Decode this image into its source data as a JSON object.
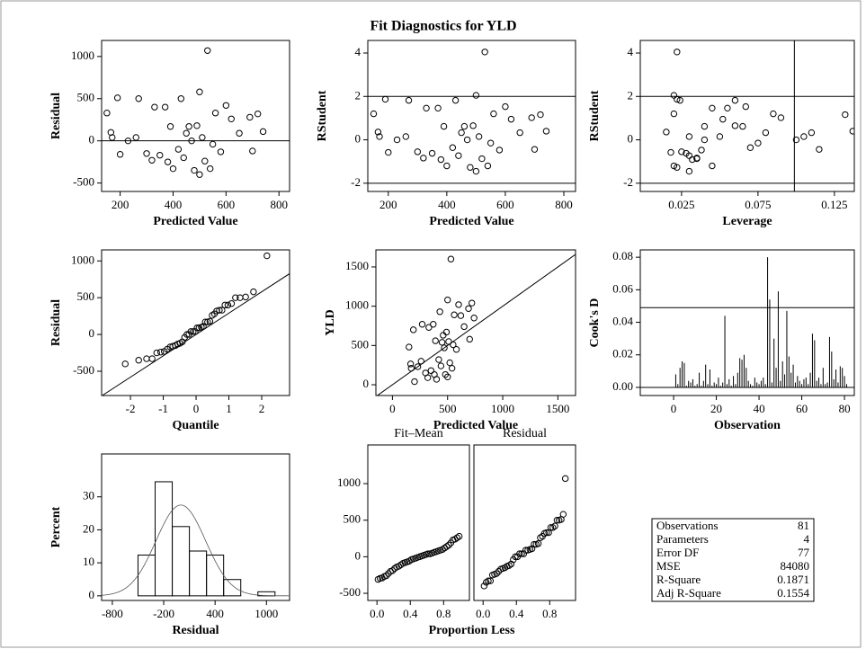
{
  "title": "Fit Diagnostics for YLD",
  "chart_data": [
    {
      "type": "scatter",
      "xlabel": "Predicted Value",
      "ylabel": "Residual",
      "x": [
        150,
        165,
        170,
        190,
        200,
        230,
        260,
        270,
        300,
        320,
        330,
        350,
        370,
        380,
        390,
        400,
        420,
        430,
        440,
        450,
        460,
        470,
        480,
        490,
        500,
        500,
        510,
        520,
        530,
        540,
        550,
        560,
        580,
        600,
        620,
        650,
        690,
        700,
        720,
        740
      ],
      "values": [
        330,
        100,
        40,
        510,
        -160,
        0,
        40,
        500,
        -150,
        -230,
        400,
        -170,
        400,
        -250,
        170,
        -330,
        -100,
        500,
        -200,
        90,
        170,
        0,
        -350,
        180,
        580,
        -400,
        40,
        -240,
        1070,
        -330,
        -40,
        330,
        -130,
        420,
        260,
        90,
        280,
        -120,
        320,
        110
      ],
      "xlim": [
        130,
        840
      ],
      "xticks": [
        200,
        400,
        600,
        800
      ],
      "ylim": [
        -600,
        1190
      ],
      "yticks": [
        -500,
        0,
        500,
        1000
      ],
      "hlines": [
        0
      ]
    },
    {
      "type": "scatter",
      "xlabel": "Predicted Value",
      "ylabel": "RStudent",
      "x": [
        150,
        165,
        170,
        190,
        200,
        230,
        260,
        270,
        300,
        320,
        330,
        350,
        370,
        380,
        390,
        400,
        420,
        430,
        440,
        450,
        460,
        470,
        480,
        490,
        500,
        500,
        510,
        520,
        530,
        540,
        550,
        560,
        580,
        600,
        620,
        650,
        690,
        700,
        720,
        740
      ],
      "values": [
        1.2,
        0.36,
        0.15,
        1.87,
        -0.58,
        0,
        0.15,
        1.82,
        -0.55,
        -0.84,
        1.46,
        -0.62,
        1.46,
        -0.91,
        0.62,
        -1.2,
        -0.36,
        1.82,
        -0.73,
        0.33,
        0.62,
        0,
        -1.27,
        0.65,
        2.05,
        -1.45,
        0.15,
        -0.87,
        4.05,
        -1.2,
        -0.15,
        1.2,
        -0.47,
        1.53,
        0.95,
        0.33,
        1.02,
        -0.44,
        1.16,
        0.4
      ],
      "xlim": [
        130,
        840
      ],
      "xticks": [
        200,
        400,
        600,
        800
      ],
      "ylim": [
        -2.38,
        4.58
      ],
      "yticks": [
        -2,
        0,
        2,
        4
      ],
      "hlines": [
        -2,
        2
      ]
    },
    {
      "type": "scatter",
      "xlabel": "Leverage",
      "ylabel": "RStudent",
      "x": [
        0.02,
        0.015,
        0.03,
        0.022,
        0.018,
        0.04,
        0.05,
        0.06,
        0.025,
        0.035,
        0.045,
        0.028,
        0.055,
        0.032,
        0.065,
        0.02,
        0.07,
        0.024,
        0.03,
        0.08,
        0.04,
        0.1,
        0.022,
        0.06,
        0.02,
        0.03,
        0.105,
        0.035,
        0.022,
        0.045,
        0.075,
        0.085,
        0.038,
        0.067,
        0.052,
        0.11,
        0.09,
        0.115,
        0.132,
        0.137
      ],
      "values": [
        1.2,
        0.36,
        0.15,
        1.87,
        -0.58,
        0,
        0.15,
        1.82,
        -0.55,
        -0.84,
        1.46,
        -0.62,
        1.46,
        -0.91,
        0.62,
        -1.2,
        -0.36,
        1.82,
        -0.73,
        0.33,
        0.62,
        0,
        -1.27,
        0.65,
        2.05,
        -1.45,
        0.15,
        -0.87,
        4.05,
        -1.2,
        -0.15,
        1.2,
        -0.47,
        1.53,
        0.95,
        0.33,
        1.02,
        -0.44,
        1.16,
        0.4
      ],
      "xlim": [
        -0.002,
        0.138
      ],
      "xticks": [
        0.025,
        0.075,
        0.125
      ],
      "ylim": [
        -2.38,
        4.58
      ],
      "yticks": [
        -2,
        0,
        2,
        4
      ],
      "hlines": [
        -2,
        2
      ],
      "vlines": [
        0.0988
      ]
    },
    {
      "type": "scatter",
      "xlabel": "Quantile",
      "ylabel": "Residual",
      "x": [
        -2.16,
        -1.75,
        -1.51,
        -1.34,
        -1.2,
        -1.08,
        -0.97,
        -0.88,
        -0.79,
        -0.71,
        -0.63,
        -0.56,
        -0.49,
        -0.42,
        -0.35,
        -0.28,
        -0.22,
        -0.16,
        -0.09,
        -0.03,
        0.03,
        0.09,
        0.16,
        0.22,
        0.28,
        0.35,
        0.42,
        0.49,
        0.56,
        0.63,
        0.71,
        0.79,
        0.88,
        0.97,
        1.08,
        1.2,
        1.34,
        1.51,
        1.75,
        2.16
      ],
      "values": [
        -400,
        -350,
        -330,
        -330,
        -250,
        -240,
        -230,
        -200,
        -170,
        -160,
        -150,
        -130,
        -120,
        -100,
        -40,
        0,
        0,
        40,
        40,
        40,
        90,
        90,
        100,
        110,
        170,
        170,
        180,
        260,
        280,
        320,
        330,
        330,
        400,
        400,
        420,
        500,
        500,
        510,
        580,
        1070
      ],
      "xlim": [
        -2.88,
        2.85
      ],
      "xticks": [
        -2,
        -1,
        0,
        1,
        2
      ],
      "ylim": [
        -830,
        1150
      ],
      "yticks": [
        -500,
        0,
        500,
        1000
      ],
      "ref_line": {
        "intercept": 0,
        "slope": 290
      }
    },
    {
      "type": "scatter",
      "xlabel": "Predicted Value",
      "ylabel": "YLD",
      "x": [
        150,
        165,
        170,
        190,
        200,
        230,
        260,
        270,
        300,
        320,
        330,
        350,
        370,
        380,
        390,
        400,
        420,
        430,
        440,
        450,
        460,
        470,
        480,
        490,
        500,
        500,
        510,
        520,
        530,
        540,
        550,
        560,
        580,
        600,
        620,
        650,
        690,
        700,
        720,
        740
      ],
      "values": [
        480,
        265,
        210,
        700,
        40,
        230,
        300,
        770,
        150,
        90,
        730,
        180,
        770,
        130,
        560,
        70,
        320,
        930,
        240,
        540,
        630,
        470,
        130,
        670,
        1080,
        100,
        550,
        280,
        1600,
        210,
        510,
        890,
        450,
        1020,
        880,
        740,
        970,
        580,
        1040,
        850
      ],
      "xlim": [
        -150,
        1660
      ],
      "xticks": [
        0,
        500,
        1000,
        1500
      ],
      "ylim": [
        -137,
        1717
      ],
      "yticks": [
        0,
        500,
        1000,
        1500
      ],
      "ref_line": {
        "intercept": 0,
        "slope": 1
      }
    },
    {
      "type": "needle",
      "xlabel": "Observation",
      "ylabel": "Cook's D",
      "x": [
        1,
        2,
        3,
        4,
        5,
        6,
        7,
        8,
        9,
        10,
        11,
        12,
        13,
        14,
        15,
        16,
        17,
        18,
        19,
        20,
        21,
        22,
        23,
        24,
        25,
        26,
        27,
        28,
        29,
        30,
        31,
        32,
        33,
        34,
        35,
        36,
        37,
        38,
        39,
        40,
        41,
        42,
        43,
        44,
        45,
        46,
        47,
        48,
        49,
        50,
        51,
        52,
        53,
        54,
        55,
        56,
        57,
        58,
        59,
        60,
        61,
        62,
        63,
        64,
        65,
        66,
        67,
        68,
        69,
        70,
        71,
        72,
        73,
        74,
        75,
        76,
        77,
        78,
        79,
        80,
        81
      ],
      "values": [
        0.008,
        0.002,
        0.012,
        0.016,
        0.015,
        0.001,
        0.004,
        0.003,
        0.005,
        0.001,
        0.002,
        0.009,
        0.001,
        0.004,
        0.014,
        0.002,
        0.011,
        0.001,
        0.003,
        0.002,
        0.006,
        0.001,
        0.003,
        0.044,
        0.002,
        0.005,
        0.001,
        0.007,
        0.002,
        0.009,
        0.018,
        0.017,
        0.02,
        0.012,
        0.004,
        0.002,
        0.001,
        0.006,
        0.003,
        0.002,
        0.004,
        0.006,
        0.002,
        0.08,
        0.054,
        0.003,
        0.03,
        0.012,
        0.059,
        0.004,
        0.016,
        0.008,
        0.047,
        0.019,
        0.009,
        0.014,
        0.003,
        0.007,
        0.004,
        0.002,
        0.005,
        0.006,
        0.002,
        0.009,
        0.033,
        0.029,
        0.004,
        0.006,
        0.002,
        0.012,
        0.002,
        0.003,
        0.031,
        0.022,
        0.005,
        0.011,
        0.003,
        0.013,
        0.012,
        0.007,
        0.002
      ],
      "xlim": [
        -15.6,
        84.6
      ],
      "xticks": [
        0,
        20,
        40,
        60,
        80
      ],
      "ylim": [
        -0.005,
        0.0845
      ],
      "yticks": [
        {
          "value": 0,
          "label": "0.00"
        },
        {
          "value": 0.02,
          "label": "0.02"
        },
        {
          "value": 0.04,
          "label": "0.04"
        },
        {
          "value": 0.06,
          "label": "0.06"
        },
        {
          "value": 0.08,
          "label": "0.08"
        }
      ],
      "hlines": [
        0,
        0.049
      ]
    },
    {
      "type": "histogram",
      "xlabel": "Residual",
      "ylabel": "Percent",
      "bins": [
        -500,
        -300,
        -100,
        100,
        300,
        500,
        700,
        900,
        1100
      ],
      "values": [
        12.35,
        34.57,
        20.99,
        13.58,
        12.35,
        4.94,
        0,
        1.23
      ],
      "xlim": [
        -925,
        1270
      ],
      "xticks": [
        -800,
        -200,
        400,
        1000
      ],
      "ylim": [
        -1.4,
        43
      ],
      "yticks": [
        0,
        10,
        20,
        30
      ],
      "normal_curve": {
        "mean": 0,
        "sd": 290
      }
    },
    {
      "type": "spread",
      "xlabel": "Proportion Less",
      "x": [
        0.0125,
        0.0375,
        0.0625,
        0.0875,
        0.1125,
        0.1375,
        0.1625,
        0.1875,
        0.2125,
        0.2375,
        0.2625,
        0.2875,
        0.3125,
        0.3375,
        0.3625,
        0.3875,
        0.4125,
        0.4375,
        0.4625,
        0.4875,
        0.5125,
        0.5375,
        0.5625,
        0.5875,
        0.6125,
        0.6375,
        0.6625,
        0.6875,
        0.7125,
        0.7375,
        0.7625,
        0.7875,
        0.8125,
        0.8375,
        0.8625,
        0.8875,
        0.9125,
        0.9375,
        0.9625,
        0.9875
      ],
      "series": [
        {
          "name": "Fit–Mean",
          "values": [
            -310,
            -295,
            -290,
            -270,
            -260,
            -230,
            -200,
            -190,
            -160,
            -140,
            -130,
            -110,
            -90,
            -80,
            -70,
            -60,
            -40,
            -30,
            -20,
            -10,
            0,
            10,
            20,
            30,
            40,
            40,
            50,
            60,
            70,
            80,
            90,
            100,
            120,
            140,
            160,
            190,
            230,
            240,
            260,
            280
          ]
        },
        {
          "name": "Residual",
          "values": [
            -400,
            -350,
            -330,
            -330,
            -250,
            -240,
            -230,
            -200,
            -170,
            -160,
            -150,
            -130,
            -120,
            -100,
            -40,
            0,
            0,
            40,
            40,
            40,
            90,
            90,
            100,
            110,
            170,
            170,
            180,
            260,
            280,
            320,
            330,
            330,
            400,
            400,
            420,
            500,
            500,
            510,
            580,
            1070
          ]
        }
      ],
      "xlim": [
        -0.11,
        1.11
      ],
      "xticks": [
        {
          "value": 0,
          "label": "0.0"
        },
        0.4,
        0.8
      ],
      "ylim": [
        -598,
        1529
      ],
      "yticks": [
        -500,
        0,
        500,
        1000
      ]
    }
  ],
  "fit_statistics": {
    "rows": [
      [
        "Observations",
        81
      ],
      [
        "Parameters",
        4
      ],
      [
        "Error DF",
        77
      ],
      [
        "MSE",
        84080
      ],
      [
        "R-Square",
        0.1871
      ],
      [
        "Adj R-Square",
        0.1554
      ]
    ]
  }
}
